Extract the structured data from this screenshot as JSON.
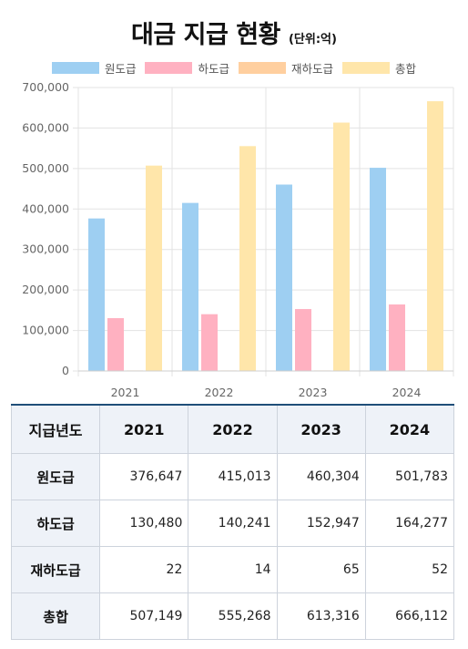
{
  "title": "대금 지급 현황",
  "unit": "(단위:억)",
  "colors": {
    "원도급": "#9ecff2",
    "하도급": "#ffb1c1",
    "재하도급": "#ffcf9f",
    "총합": "#ffe6aa",
    "grid": "#e3e3e3",
    "axis_text": "#666666",
    "table_header_bg": "#eef2f8",
    "table_top_border": "#1f4e79"
  },
  "chart_data": {
    "type": "bar",
    "categories": [
      "2021",
      "2022",
      "2023",
      "2024"
    ],
    "series": [
      {
        "name": "원도급",
        "values": [
          376647,
          415013,
          460304,
          501783
        ]
      },
      {
        "name": "하도급",
        "values": [
          130480,
          140241,
          152947,
          164277
        ]
      },
      {
        "name": "재하도급",
        "values": [
          22,
          14,
          65,
          52
        ]
      },
      {
        "name": "총합",
        "values": [
          507149,
          555268,
          613316,
          666112
        ]
      }
    ],
    "ylim": [
      0,
      700000
    ],
    "yticks": [
      "0",
      "100,000",
      "200,000",
      "300,000",
      "400,000",
      "500,000",
      "600,000",
      "700,000"
    ],
    "grid": true,
    "legend": "top"
  },
  "table": {
    "corner": "지급년도",
    "columns": [
      "2021",
      "2022",
      "2023",
      "2024"
    ],
    "rows": [
      {
        "label": "원도급",
        "cells": [
          "376,647",
          "415,013",
          "460,304",
          "501,783"
        ]
      },
      {
        "label": "하도급",
        "cells": [
          "130,480",
          "140,241",
          "152,947",
          "164,277"
        ]
      },
      {
        "label": "재하도급",
        "cells": [
          "22",
          "14",
          "65",
          "52"
        ]
      },
      {
        "label": "총합",
        "cells": [
          "507,149",
          "555,268",
          "613,316",
          "666,112"
        ]
      }
    ]
  }
}
